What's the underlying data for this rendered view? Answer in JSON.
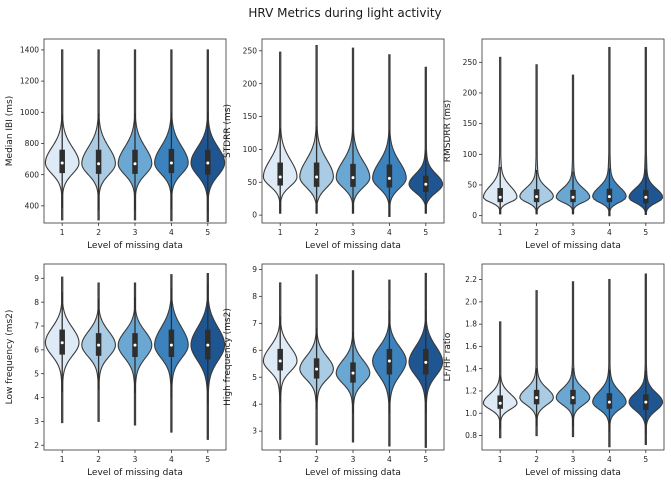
{
  "title": "HRV Metrics during light activity",
  "colors": [
    "#deebf7",
    "#a9cce4",
    "#6aa8d3",
    "#3c82bd",
    "#1f5591"
  ],
  "chart_data": [
    {
      "type": "violin",
      "ylabel": "Median IBI (ms)",
      "xlabel": "Level of missing data",
      "categories": [
        "1",
        "2",
        "3",
        "4",
        "5"
      ],
      "ylim": [
        290,
        1470
      ],
      "yticks": [
        "400",
        "600",
        "800",
        "1000",
        "1200",
        "1400"
      ],
      "series": [
        {
          "category": "1",
          "min": 310,
          "q1": 610,
          "median": 675,
          "q3": 760,
          "max": 1400
        },
        {
          "category": "2",
          "min": 310,
          "q1": 605,
          "median": 670,
          "q3": 760,
          "max": 1400
        },
        {
          "category": "3",
          "min": 310,
          "q1": 605,
          "median": 670,
          "q3": 760,
          "max": 1400
        },
        {
          "category": "4",
          "min": 305,
          "q1": 610,
          "median": 675,
          "q3": 765,
          "max": 1400
        },
        {
          "category": "5",
          "min": 300,
          "q1": 600,
          "median": 675,
          "q3": 760,
          "max": 1400
        }
      ]
    },
    {
      "type": "violin",
      "ylabel": "STDRR (ms)",
      "xlabel": "Level of missing data",
      "categories": [
        "1",
        "2",
        "3",
        "4",
        "5"
      ],
      "ylim": [
        -12,
        268
      ],
      "yticks": [
        "0",
        "50",
        "100",
        "150",
        "200",
        "250"
      ],
      "series": [
        {
          "category": "1",
          "min": 3,
          "q1": 45,
          "median": 58,
          "q3": 80,
          "max": 248
        },
        {
          "category": "2",
          "min": 3,
          "q1": 43,
          "median": 58,
          "q3": 80,
          "max": 258
        },
        {
          "category": "3",
          "min": 3,
          "q1": 43,
          "median": 57,
          "q3": 78,
          "max": 254
        },
        {
          "category": "4",
          "min": -2,
          "q1": 42,
          "median": 56,
          "q3": 77,
          "max": 244
        },
        {
          "category": "5",
          "min": 3,
          "q1": 35,
          "median": 47,
          "q3": 60,
          "max": 225
        }
      ]
    },
    {
      "type": "violin",
      "ylabel": "RMSDRR (ms)",
      "xlabel": "Level of missing data",
      "categories": [
        "1",
        "2",
        "3",
        "4",
        "5"
      ],
      "ylim": [
        -12,
        288
      ],
      "yticks": [
        "0",
        "50",
        "100",
        "150",
        "200",
        "250"
      ],
      "series": [
        {
          "category": "1",
          "min": 3,
          "q1": 22,
          "median": 30,
          "q3": 45,
          "max": 258
        },
        {
          "category": "2",
          "min": 3,
          "q1": 22,
          "median": 31,
          "q3": 43,
          "max": 246
        },
        {
          "category": "3",
          "min": 3,
          "q1": 22,
          "median": 30,
          "q3": 42,
          "max": 229
        },
        {
          "category": "4",
          "min": 0,
          "q1": 22,
          "median": 31,
          "q3": 44,
          "max": 274
        },
        {
          "category": "5",
          "min": 2,
          "q1": 20,
          "median": 30,
          "q3": 42,
          "max": 274
        }
      ]
    },
    {
      "type": "violin",
      "ylabel": "Low frequency (ms2)",
      "xlabel": "Level of missing data",
      "categories": [
        "1",
        "2",
        "3",
        "4",
        "5"
      ],
      "ylim": [
        1.8,
        9.6
      ],
      "yticks": [
        "2",
        "3",
        "4",
        "5",
        "6",
        "7",
        "8",
        "9"
      ],
      "series": [
        {
          "category": "1",
          "min": 2.95,
          "q1": 5.8,
          "median": 6.3,
          "q3": 6.85,
          "max": 9.05
        },
        {
          "category": "2",
          "min": 3.0,
          "q1": 5.75,
          "median": 6.2,
          "q3": 6.7,
          "max": 8.8
        },
        {
          "category": "3",
          "min": 2.85,
          "q1": 5.7,
          "median": 6.2,
          "q3": 6.7,
          "max": 8.8
        },
        {
          "category": "4",
          "min": 2.55,
          "q1": 5.7,
          "median": 6.2,
          "q3": 6.85,
          "max": 9.15
        },
        {
          "category": "5",
          "min": 2.25,
          "q1": 5.6,
          "median": 6.2,
          "q3": 6.85,
          "max": 9.2
        }
      ]
    },
    {
      "type": "violin",
      "ylabel": "High frequency (ms2)",
      "xlabel": "Level of missing data",
      "categories": [
        "1",
        "2",
        "3",
        "4",
        "5"
      ],
      "ylim": [
        2.3,
        9.2
      ],
      "yticks": [
        "3",
        "4",
        "5",
        "6",
        "7",
        "8",
        "9"
      ],
      "series": [
        {
          "category": "1",
          "min": 2.7,
          "q1": 5.25,
          "median": 5.6,
          "q3": 6.05,
          "max": 8.5
        },
        {
          "category": "2",
          "min": 2.5,
          "q1": 4.95,
          "median": 5.3,
          "q3": 5.7,
          "max": 8.8
        },
        {
          "category": "3",
          "min": 2.6,
          "q1": 4.8,
          "median": 5.15,
          "q3": 5.55,
          "max": 8.95
        },
        {
          "category": "4",
          "min": 2.45,
          "q1": 5.1,
          "median": 5.6,
          "q3": 6.05,
          "max": 8.6
        },
        {
          "category": "5",
          "min": 2.4,
          "q1": 5.1,
          "median": 5.55,
          "q3": 6.05,
          "max": 8.85
        }
      ]
    },
    {
      "type": "violin",
      "ylabel": "LF/HF ratio",
      "xlabel": "Level of missing data",
      "categories": [
        "1",
        "2",
        "3",
        "4",
        "5"
      ],
      "ylim": [
        0.67,
        2.34
      ],
      "yticks": [
        "0.8",
        "1.0",
        "1.2",
        "1.4",
        "1.6",
        "1.8",
        "2.0",
        "2.2"
      ],
      "series": [
        {
          "category": "1",
          "min": 0.78,
          "q1": 1.04,
          "median": 1.09,
          "q3": 1.16,
          "max": 1.82
        },
        {
          "category": "2",
          "min": 0.8,
          "q1": 1.08,
          "median": 1.14,
          "q3": 1.21,
          "max": 2.1
        },
        {
          "category": "3",
          "min": 0.79,
          "q1": 1.08,
          "median": 1.14,
          "q3": 1.21,
          "max": 2.18
        },
        {
          "category": "4",
          "min": 0.7,
          "q1": 1.04,
          "median": 1.1,
          "q3": 1.18,
          "max": 2.2
        },
        {
          "category": "5",
          "min": 0.72,
          "q1": 1.03,
          "median": 1.1,
          "q3": 1.17,
          "max": 2.25
        }
      ]
    }
  ]
}
